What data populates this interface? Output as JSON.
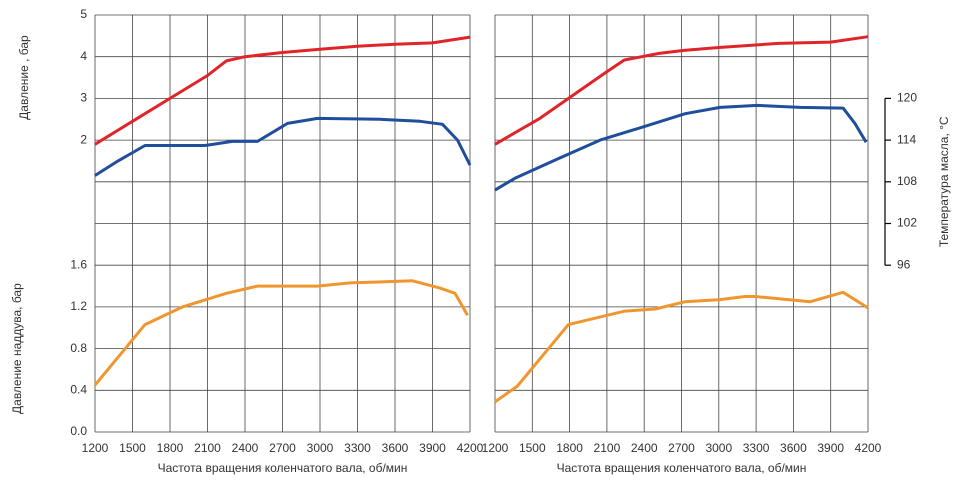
{
  "chart_data": [
    {
      "type": "line",
      "xlabel": "Частота вращения коленчатого вала, об/мин",
      "ylabel": "Давление   , бар",
      "y2label": "Давление наддува, бар",
      "xlim": [
        1200,
        4200
      ],
      "xticks": [
        1200,
        1500,
        1800,
        2100,
        2400,
        2700,
        3000,
        3300,
        3600,
        3900,
        4200
      ],
      "ylim": [
        -5,
        5
      ],
      "yticks": [
        2,
        3,
        4,
        5
      ],
      "y2lim": [
        0,
        4
      ],
      "y2ticks": [
        {
          "value": 0,
          "label": "0.0"
        },
        0.4,
        0.8,
        1.2,
        1.6
      ],
      "grid": true,
      "series": [
        {
          "color": "#e0242a",
          "axis": "y",
          "x": [
            1200,
            1500,
            1800,
            2100,
            2250,
            2400,
            2700,
            3000,
            3300,
            3600,
            3900,
            4200
          ],
          "values": [
            1.9,
            2.45,
            3.0,
            3.55,
            3.9,
            4.0,
            4.1,
            4.18,
            4.25,
            4.3,
            4.33,
            4.47
          ]
        },
        {
          "color": "#1f4e9c",
          "axis": "y",
          "x": [
            1200,
            1385,
            1600,
            2080,
            2300,
            2500,
            2740,
            2980,
            3480,
            3800,
            3980,
            4100,
            4200
          ],
          "values": [
            1.15,
            1.5,
            1.87,
            1.87,
            1.97,
            1.97,
            2.4,
            2.52,
            2.5,
            2.45,
            2.38,
            2.0,
            1.4
          ]
        },
        {
          "color": "#f0962e",
          "axis": "y2",
          "x": [
            1200,
            1600,
            1900,
            2250,
            2500,
            2980,
            3240,
            3740,
            3960,
            4080,
            4180
          ],
          "values": [
            0.45,
            1.03,
            1.2,
            1.33,
            1.4,
            1.4,
            1.43,
            1.45,
            1.38,
            1.33,
            1.12
          ]
        }
      ]
    },
    {
      "type": "line",
      "xlabel": "Частота вращения коленчатого вала, об/мин",
      "y2label": "Температура масла, °C",
      "xlim": [
        1200,
        4200
      ],
      "xticks": [
        1200,
        1500,
        1800,
        2100,
        2400,
        2700,
        3000,
        3300,
        3600,
        3900,
        4200
      ],
      "ylim": [
        -5,
        5
      ],
      "y2lim": [
        72,
        132
      ],
      "y2ticks": [
        96,
        102,
        108,
        114,
        120
      ],
      "y3lim": [
        0,
        4
      ],
      "grid": true,
      "series": [
        {
          "color": "#e0242a",
          "axis": "y",
          "x": [
            1200,
            1560,
            2080,
            2240,
            2520,
            2720,
            3000,
            3480,
            3900,
            4200
          ],
          "values": [
            1.9,
            2.52,
            3.6,
            3.92,
            4.08,
            4.15,
            4.22,
            4.32,
            4.35,
            4.48
          ]
        },
        {
          "color": "#1f4e9c",
          "axis": "y2",
          "x": [
            1200,
            1360,
            1680,
            2045,
            2410,
            2730,
            3010,
            3310,
            3655,
            4000,
            4095,
            4185
          ],
          "values": [
            106.8,
            108.5,
            111.1,
            114,
            116,
            117.8,
            118.7,
            119,
            118.7,
            118.6,
            116.4,
            113.7
          ]
        },
        {
          "color": "#f0962e",
          "axis": "y3",
          "x": [
            1200,
            1380,
            1790,
            2245,
            2490,
            2730,
            3010,
            3210,
            3290,
            3735,
            4000,
            4200
          ],
          "values": [
            0.29,
            0.44,
            1.03,
            1.16,
            1.18,
            1.25,
            1.27,
            1.3,
            1.3,
            1.25,
            1.34,
            1.19
          ]
        }
      ]
    }
  ]
}
